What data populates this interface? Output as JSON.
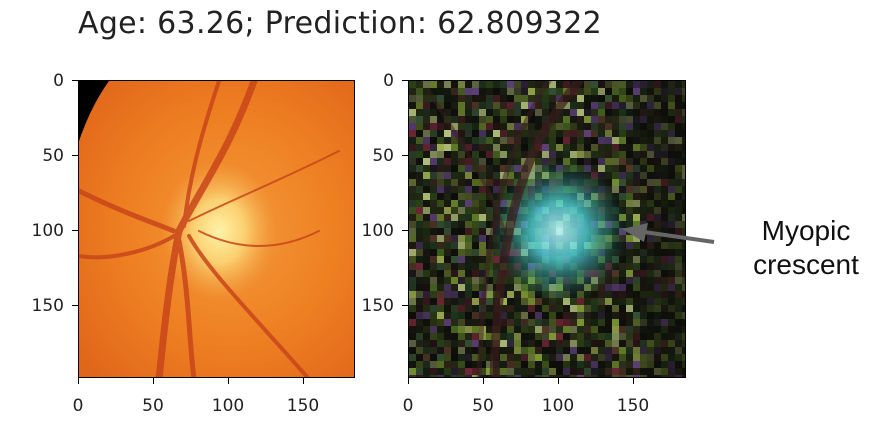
{
  "title": "Age: 63.26; Prediction: 62.809322",
  "panels": [
    {
      "name": "fundus",
      "yticks": [
        "0",
        "50",
        "100",
        "150"
      ],
      "xticks": [
        "0",
        "50",
        "100",
        "150"
      ]
    },
    {
      "name": "saliency",
      "yticks": [
        "0",
        "50",
        "100",
        "150"
      ],
      "xticks": [
        "0",
        "50",
        "100",
        "150"
      ]
    }
  ],
  "annotation": {
    "line1": "Myopic",
    "line2": "crescent",
    "arrow_color": "#666666"
  }
}
